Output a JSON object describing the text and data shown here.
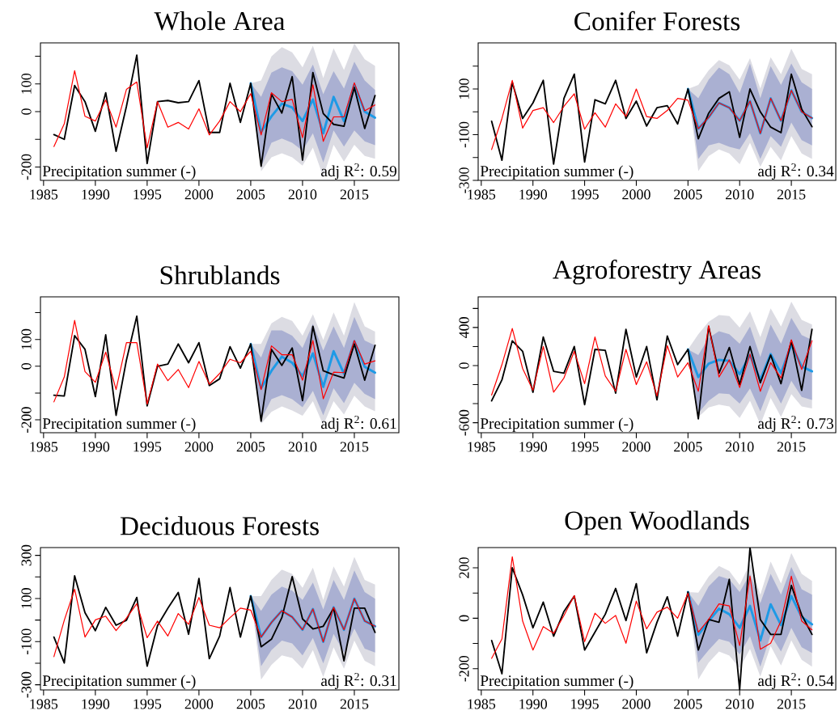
{
  "chart_data": [
    {
      "type": "line",
      "title": "Whole Area",
      "x": [
        1986,
        1987,
        1988,
        1989,
        1990,
        1991,
        1992,
        1993,
        1994,
        1995,
        1996,
        1997,
        1998,
        1999,
        2000,
        2001,
        2002,
        2003,
        2004,
        2005,
        2006,
        2007,
        2008,
        2009,
        2010,
        2011,
        2012,
        2013,
        2014,
        2015,
        2016,
        2017
      ],
      "xlim": [
        1984.7,
        2019.3
      ],
      "xticks": [
        1985,
        1990,
        1995,
        2000,
        2005,
        2010,
        2015
      ],
      "ylim": [
        -248,
        248
      ],
      "yticks": [
        -200,
        {
          "value": -100,
          "label": null
        },
        0,
        100,
        {
          "value": 200,
          "label": null
        }
      ],
      "annotations": [
        "Precipitation summer (-)",
        "adj R$^{2}$: 0.59"
      ],
      "series": [
        {
          "color": "#dcdce3",
          "x": [
            2005,
            2006,
            2007,
            2008,
            2009,
            2010,
            2011,
            2012,
            2013,
            2014,
            2015,
            2016,
            2017
          ],
          "values": [
            null,
            null,
            null,
            null,
            null,
            null,
            null,
            null,
            null,
            null,
            null,
            null,
            null
          ],
          "lower": [
            102,
            -215,
            -165,
            -150,
            -165,
            -195,
            -130,
            -235,
            -120,
            -180,
            -120,
            -160,
            -170
          ],
          "upper": [
            102,
            112,
            199,
            233,
            214,
            160,
            238,
            121,
            228,
            150,
            246,
            189,
            165
          ]
        },
        {
          "color": "#aab0d2",
          "x": [
            2005,
            2006,
            2007,
            2008,
            2009,
            2010,
            2011,
            2012,
            2013,
            2014,
            2015,
            2016,
            2017
          ],
          "values": [
            null,
            null,
            null,
            null,
            null,
            null,
            null,
            null,
            null,
            null,
            null,
            null,
            null
          ],
          "lower": [
            102,
            -199,
            -112,
            -97,
            -112,
            -141,
            -78,
            -184,
            -68,
            -126,
            -68,
            -107,
            -121
          ],
          "upper": [
            102,
            53,
            141,
            160,
            146,
            97,
            170,
            63,
            146,
            83,
            180,
            112,
            78
          ]
        },
        {
          "color": "#1e9ae6",
          "x": [
            2005,
            2006,
            2007,
            2008,
            2009,
            2010,
            2011,
            2012,
            2013,
            2014,
            2015,
            2016,
            2017
          ],
          "values": [
            102,
            -73,
            -17,
            29,
            15,
            -34,
            44,
            -78,
            53,
            -34,
            97,
            0,
            -22
          ]
        },
        {
          "color": "#000000",
          "values": [
            -83,
            -100,
            94,
            36,
            -71,
            68,
            -143,
            19,
            204,
            -187,
            36,
            40,
            32,
            36,
            112,
            -75,
            -75,
            102,
            -39,
            102,
            -197,
            63,
            -5,
            126,
            -175,
            141,
            -7,
            -46,
            -53,
            87,
            -61,
            58
          ]
        },
        {
          "color": "#ff0000",
          "values": [
            -126,
            -44,
            148,
            -17,
            -34,
            42,
            -56,
            80,
            107,
            -131,
            36,
            -56,
            -39,
            -63,
            10,
            -84,
            -34,
            36,
            0,
            65,
            -84,
            68,
            36,
            44,
            -94,
            97,
            -107,
            -19,
            -19,
            104,
            3,
            24
          ]
        }
      ]
    },
    {
      "type": "line",
      "title": "Conifer Forests",
      "x": [
        1986,
        1987,
        1988,
        1989,
        1990,
        1991,
        1992,
        1993,
        1994,
        1995,
        1996,
        1997,
        1998,
        1999,
        2000,
        2001,
        2002,
        2003,
        2004,
        2005,
        2006,
        2007,
        2008,
        2009,
        2010,
        2011,
        2012,
        2013,
        2014,
        2015,
        2016,
        2017
      ],
      "xlim": [
        1984.7,
        2019.3
      ],
      "xticks": [
        1985,
        1990,
        1995,
        2000,
        2005,
        2010,
        2015
      ],
      "ylim": [
        -300,
        302
      ],
      "yticks": [
        -300,
        {
          "value": -200,
          "label": null
        },
        -100,
        {
          "value": 0,
          "label": null
        },
        100,
        {
          "value": 200,
          "label": null
        }
      ],
      "annotations": [
        "Precipitation summer (-)",
        "adj R$^{2}$: 0.34"
      ],
      "series": [
        {
          "color": "#dcdce3",
          "x": [
            2005,
            2006,
            2007,
            2008,
            2009,
            2010,
            2011,
            2012,
            2013,
            2014,
            2015,
            2016,
            2017
          ],
          "values": [
            null,
            null,
            null,
            null,
            null,
            null,
            null,
            null,
            null,
            null,
            null,
            null,
            null
          ],
          "lower": [
            100,
            -259,
            -194,
            -165,
            -182,
            -229,
            -135,
            -241,
            -153,
            -212,
            -106,
            -182,
            -206
          ],
          "upper": [
            100,
            118,
            182,
            227,
            204,
            141,
            235,
            102,
            239,
            165,
            276,
            188,
            165
          ]
        },
        {
          "color": "#aab0d2",
          "x": [
            2005,
            2006,
            2007,
            2008,
            2009,
            2010,
            2011,
            2012,
            2013,
            2014,
            2015,
            2016,
            2017
          ],
          "values": [
            null,
            null,
            null,
            null,
            null,
            null,
            null,
            null,
            null,
            null,
            null,
            null,
            null
          ],
          "lower": [
            100,
            -206,
            -147,
            -135,
            -153,
            -165,
            -94,
            -206,
            -106,
            -153,
            -47,
            -124,
            -147
          ],
          "upper": [
            100,
            59,
            141,
            194,
            165,
            82,
            212,
            59,
            200,
            118,
            212,
            129,
            100
          ]
        },
        {
          "color": "#1e9ae6",
          "x": [
            2005,
            2006,
            2007,
            2008,
            2009,
            2010,
            2011,
            2012,
            2013,
            2014,
            2015,
            2016,
            2017
          ],
          "values": [
            100,
            -74,
            -24,
            39,
            18,
            -39,
            47,
            -94,
            59,
            -39,
            94,
            0,
            -27
          ]
        },
        {
          "color": "#000000",
          "values": [
            -41,
            -212,
            129,
            -29,
            39,
            138,
            -229,
            59,
            165,
            -220,
            53,
            35,
            138,
            -29,
            47,
            -62,
            18,
            27,
            -53,
            100,
            -118,
            -6,
            59,
            88,
            -112,
            100,
            0,
            -67,
            -91,
            165,
            12,
            -65
          ]
        },
        {
          "color": "#ff0000",
          "values": [
            -165,
            -29,
            138,
            -71,
            6,
            18,
            -47,
            24,
            79,
            -76,
            -4,
            -67,
            35,
            -20,
            100,
            -21,
            -29,
            6,
            59,
            51,
            -74,
            -24,
            39,
            18,
            -39,
            47,
            -94,
            59,
            -39,
            94,
            0,
            -27
          ]
        }
      ]
    },
    {
      "type": "line",
      "title": "Shrublands",
      "x": [
        1986,
        1987,
        1988,
        1989,
        1990,
        1991,
        1992,
        1993,
        1994,
        1995,
        1996,
        1997,
        1998,
        1999,
        2000,
        2001,
        2002,
        2003,
        2004,
        2005,
        2006,
        2007,
        2008,
        2009,
        2010,
        2011,
        2012,
        2013,
        2014,
        2015,
        2016,
        2017
      ],
      "xlim": [
        1984.7,
        2019.3
      ],
      "xticks": [
        1985,
        1990,
        1995,
        2000,
        2005,
        2010,
        2015
      ],
      "ylim": [
        -248,
        259
      ],
      "yticks": [
        -200,
        {
          "value": -100,
          "label": null
        },
        0,
        100,
        {
          "value": 200,
          "label": null
        }
      ],
      "annotations": [
        "Precipitation summer (-)",
        "adj R$^{2}$: 0.61"
      ],
      "series": [
        {
          "color": "#dcdce3",
          "x": [
            2005,
            2006,
            2007,
            2008,
            2009,
            2010,
            2011,
            2012,
            2013,
            2014,
            2015,
            2016,
            2017
          ],
          "values": [
            null,
            null,
            null,
            null,
            null,
            null,
            null,
            null,
            null,
            null,
            null,
            null,
            null
          ],
          "lower": [
            83,
            -215,
            -170,
            -150,
            -165,
            -185,
            -130,
            -220,
            -130,
            -180,
            -110,
            -150,
            -168
          ],
          "upper": [
            83,
            83,
            160,
            184,
            169,
            114,
            194,
            98,
            201,
            114,
            239,
            149,
            129
          ]
        },
        {
          "color": "#aab0d2",
          "x": [
            2005,
            2006,
            2007,
            2008,
            2009,
            2010,
            2011,
            2012,
            2013,
            2014,
            2015,
            2016,
            2017
          ],
          "values": [
            null,
            null,
            null,
            null,
            null,
            null,
            null,
            null,
            null,
            null,
            null,
            null,
            null
          ],
          "lower": [
            83,
            -198,
            -123,
            -108,
            -123,
            -153,
            -92,
            -183,
            -82,
            -138,
            -62,
            -103,
            -123
          ],
          "upper": [
            83,
            33,
            134,
            134,
            114,
            68,
            159,
            58,
            149,
            68,
            184,
            96,
            78
          ]
        },
        {
          "color": "#1e9ae6",
          "x": [
            2005,
            2006,
            2007,
            2008,
            2009,
            2010,
            2011,
            2012,
            2013,
            2014,
            2015,
            2016,
            2017
          ],
          "values": [
            83,
            -82,
            -17,
            36,
            13,
            -37,
            48,
            -77,
            56,
            -27,
            93,
            -2,
            -24
          ]
        },
        {
          "color": "#000000",
          "values": [
            -108,
            -111,
            114,
            63,
            -113,
            117,
            -183,
            23,
            187,
            -148,
            0,
            8,
            83,
            13,
            88,
            -72,
            -47,
            73,
            -7,
            83,
            -205,
            63,
            3,
            68,
            -128,
            149,
            -17,
            -32,
            -44,
            83,
            -52,
            78
          ]
        },
        {
          "color": "#ff0000",
          "values": [
            -133,
            -40,
            171,
            -20,
            -60,
            53,
            -87,
            88,
            88,
            -141,
            8,
            -54,
            -12,
            -80,
            18,
            -67,
            -27,
            26,
            13,
            56,
            -87,
            76,
            43,
            43,
            -52,
            96,
            -121,
            -22,
            -24,
            96,
            8,
            20
          ]
        }
      ]
    },
    {
      "type": "line",
      "title": "Agroforestry Areas",
      "x": [
        1986,
        1987,
        1988,
        1989,
        1990,
        1991,
        1992,
        1993,
        1994,
        1995,
        1996,
        1997,
        1998,
        1999,
        2000,
        2001,
        2002,
        2003,
        2004,
        2005,
        2006,
        2007,
        2008,
        2009,
        2010,
        2011,
        2012,
        2013,
        2014,
        2015,
        2016,
        2017
      ],
      "xlim": [
        1984.7,
        2019.3
      ],
      "xticks": [
        1985,
        1990,
        1995,
        2000,
        2005,
        2010,
        2015
      ],
      "ylim": [
        -705,
        722
      ],
      "yticks": [
        -600,
        {
          "value": -400,
          "label": null
        },
        {
          "value": -200,
          "label": null
        },
        0,
        {
          "value": 200,
          "label": null
        },
        400,
        {
          "value": 600,
          "label": null
        }
      ],
      "annotations": [
        "Precipitation summer (-)",
        "adj R$^{2}$: 0.73"
      ],
      "series": [
        {
          "color": "#dcdce3",
          "x": [
            2005,
            2006,
            2007,
            2008,
            2009,
            2010,
            2011,
            2012,
            2013,
            2014,
            2015,
            2016,
            2017
          ],
          "values": [
            null,
            null,
            null,
            null,
            null,
            null,
            null,
            null,
            null,
            null,
            null,
            null,
            null
          ],
          "lower": [
            170,
            -540,
            -440,
            -410,
            -430,
            -550,
            -370,
            -620,
            -340,
            -540,
            -300,
            -430,
            -450
          ],
          "upper": [
            170,
            330,
            460,
            530,
            520,
            400,
            570,
            300,
            600,
            410,
            670,
            480,
            430
          ]
        },
        {
          "color": "#aab0d2",
          "x": [
            2005,
            2006,
            2007,
            2008,
            2009,
            2010,
            2011,
            2012,
            2013,
            2014,
            2015,
            2016,
            2017
          ],
          "values": [
            null,
            null,
            null,
            null,
            null,
            null,
            null,
            null,
            null,
            null,
            null,
            null,
            null
          ],
          "lower": [
            170,
            -500,
            -370,
            -290,
            -300,
            -400,
            -240,
            -480,
            -200,
            -400,
            -160,
            -330,
            -360
          ],
          "upper": [
            170,
            110,
            290,
            360,
            330,
            230,
            410,
            90,
            430,
            230,
            500,
            320,
            270
          ]
        },
        {
          "color": "#1e9ae6",
          "x": [
            2005,
            2006,
            2007,
            2008,
            2009,
            2010,
            2011,
            2012,
            2013,
            2014,
            2015,
            2016,
            2017
          ],
          "values": [
            170,
            -120,
            20,
            60,
            50,
            -90,
            110,
            -150,
            120,
            -80,
            220,
            -10,
            -60
          ]
        },
        {
          "color": "#000000",
          "values": [
            -370,
            -150,
            260,
            150,
            -280,
            300,
            -60,
            -80,
            200,
            -410,
            170,
            160,
            -290,
            380,
            -120,
            200,
            -360,
            310,
            10,
            170,
            -560,
            410,
            -80,
            190,
            -200,
            200,
            -180,
            110,
            -190,
            260,
            -260,
            380
          ]
        },
        {
          "color": "#ff0000",
          "values": [
            -310,
            10,
            390,
            -30,
            -260,
            200,
            -280,
            -130,
            150,
            -190,
            300,
            -110,
            -270,
            170,
            -200,
            40,
            -320,
            210,
            -120,
            30,
            -270,
            420,
            -120,
            60,
            -230,
            120,
            -270,
            30,
            -130,
            270,
            -40,
            260
          ]
        }
      ]
    },
    {
      "type": "line",
      "title": "Deciduous Forests",
      "x": [
        1986,
        1987,
        1988,
        1989,
        1990,
        1991,
        1992,
        1993,
        1994,
        1995,
        1996,
        1997,
        1998,
        1999,
        2000,
        2001,
        2002,
        2003,
        2004,
        2005,
        2006,
        2007,
        2008,
        2009,
        2010,
        2011,
        2012,
        2013,
        2014,
        2015,
        2016,
        2017
      ],
      "xlim": [
        1984.7,
        2019.3
      ],
      "xticks": [
        1985,
        1990,
        1995,
        2000,
        2005,
        2010,
        2015
      ],
      "ylim": [
        -324,
        336
      ],
      "yticks": [
        -300,
        {
          "value": -200,
          "label": null
        },
        -100,
        {
          "value": 0,
          "label": null
        },
        100,
        {
          "value": 200,
          "label": null
        },
        300
      ],
      "annotations": [
        "Precipitation summer (-)",
        "adj R$^{2}$: 0.31"
      ],
      "series": [
        {
          "color": "#dcdce3",
          "x": [
            2005,
            2006,
            2007,
            2008,
            2009,
            2010,
            2011,
            2012,
            2013,
            2014,
            2015,
            2016,
            2017
          ],
          "values": [
            null,
            null,
            null,
            null,
            null,
            null,
            null,
            null,
            null,
            null,
            null,
            null,
            null
          ],
          "lower": [
            111,
            -276,
            -208,
            -164,
            -176,
            -226,
            -139,
            -264,
            -126,
            -226,
            -95,
            -189,
            -214
          ],
          "upper": [
            111,
            111,
            186,
            234,
            214,
            149,
            243,
            93,
            249,
            155,
            293,
            186,
            164
          ]
        },
        {
          "color": "#aab0d2",
          "x": [
            2005,
            2006,
            2007,
            2008,
            2009,
            2010,
            2011,
            2012,
            2013,
            2014,
            2015,
            2016,
            2017
          ],
          "values": [
            null,
            null,
            null,
            null,
            null,
            null,
            null,
            null,
            null,
            null,
            null,
            null,
            null
          ],
          "lower": [
            111,
            -214,
            -139,
            -95,
            -108,
            -164,
            -83,
            -201,
            -64,
            -151,
            -39,
            -133,
            -151
          ],
          "upper": [
            111,
            43,
            118,
            155,
            136,
            93,
            174,
            49,
            186,
            93,
            230,
            130,
            99
          ]
        },
        {
          "color": "#1e9ae6",
          "x": [
            2005,
            2006,
            2007,
            2008,
            2009,
            2010,
            2011,
            2012,
            2013,
            2014,
            2015,
            2016,
            2017
          ],
          "values": [
            111,
            -79,
            -11,
            43,
            14,
            -45,
            51,
            -101,
            59,
            -45,
            99,
            -4,
            -29
          ]
        },
        {
          "color": "#000000",
          "values": [
            -79,
            -199,
            205,
            34,
            -49,
            59,
            -24,
            -1,
            105,
            -214,
            -26,
            55,
            128,
            -66,
            193,
            -179,
            -74,
            151,
            -79,
            111,
            -124,
            -89,
            11,
            201,
            5,
            -41,
            -29,
            55,
            -189,
            55,
            55,
            -57
          ]
        },
        {
          "color": "#ff0000",
          "values": [
            -170,
            -1,
            143,
            -79,
            1,
            18,
            -49,
            9,
            76,
            -82,
            -5,
            -74,
            30,
            -20,
            105,
            -24,
            -36,
            11,
            55,
            46,
            -79,
            -11,
            43,
            14,
            -45,
            51,
            -101,
            59,
            -45,
            99,
            -4,
            -29
          ]
        }
      ]
    },
    {
      "type": "line",
      "title": "Open Woodlands",
      "x": [
        1986,
        1987,
        1988,
        1989,
        1990,
        1991,
        1992,
        1993,
        1994,
        1995,
        1996,
        1997,
        1998,
        1999,
        2000,
        2001,
        2002,
        2003,
        2004,
        2005,
        2006,
        2007,
        2008,
        2009,
        2010,
        2011,
        2012,
        2013,
        2014,
        2015,
        2016,
        2017
      ],
      "xlim": [
        1984.7,
        2019.3
      ],
      "xticks": [
        1985,
        1990,
        1995,
        2000,
        2005,
        2010,
        2015
      ],
      "ylim": [
        -284,
        280
      ],
      "yticks": [
        -200,
        {
          "value": -100,
          "label": null
        },
        0,
        {
          "value": 100,
          "label": null
        },
        200
      ],
      "annotations": [
        "Precipitation summer (-)",
        "adj R$^{2}$: 0.54"
      ],
      "series": [
        {
          "color": "#dcdce3",
          "x": [
            2005,
            2006,
            2007,
            2008,
            2009,
            2010,
            2011,
            2012,
            2013,
            2014,
            2015,
            2016,
            2017
          ],
          "values": [
            null,
            null,
            null,
            null,
            null,
            null,
            null,
            null,
            null,
            null,
            null,
            null,
            null
          ],
          "lower": [
            104,
            -242,
            -176,
            -132,
            -148,
            -198,
            -121,
            -231,
            -110,
            -187,
            -88,
            -165,
            -192
          ],
          "upper": [
            104,
            101,
            165,
            207,
            187,
            132,
            218,
            93,
            225,
            137,
            258,
            176,
            148
          ]
        },
        {
          "color": "#aab0d2",
          "x": [
            2005,
            2006,
            2007,
            2008,
            2009,
            2010,
            2011,
            2012,
            2013,
            2014,
            2015,
            2016,
            2017
          ],
          "values": [
            null,
            null,
            null,
            null,
            null,
            null,
            null,
            null,
            null,
            null,
            null,
            null,
            null
          ],
          "lower": [
            104,
            -176,
            -126,
            -82,
            -93,
            -143,
            -71,
            -192,
            -66,
            -132,
            -38,
            -115,
            -137
          ],
          "upper": [
            104,
            49,
            126,
            167,
            154,
            104,
            176,
            60,
            176,
            93,
            203,
            115,
            93
          ]
        },
        {
          "color": "#1e9ae6",
          "x": [
            2005,
            2006,
            2007,
            2008,
            2009,
            2010,
            2011,
            2012,
            2013,
            2014,
            2015,
            2016,
            2017
          ],
          "values": [
            104,
            -66,
            -11,
            38,
            16,
            -38,
            49,
            -88,
            55,
            -27,
            88,
            5,
            -24
          ]
        },
        {
          "color": "#000000",
          "values": [
            -88,
            -220,
            200,
            93,
            -38,
            64,
            -71,
            27,
            88,
            -126,
            -55,
            16,
            118,
            -9,
            137,
            -137,
            -16,
            85,
            -71,
            104,
            -126,
            -5,
            -16,
            154,
            -284,
            280,
            -5,
            -64,
            -64,
            130,
            13,
            -64
          ]
        },
        {
          "color": "#ff0000",
          "values": [
            -159,
            -82,
            244,
            -11,
            -126,
            -33,
            -60,
            11,
            90,
            -93,
            20,
            -20,
            11,
            -99,
            68,
            -42,
            24,
            44,
            0,
            99,
            -55,
            -5,
            57,
            49,
            -108,
            167,
            -123,
            -99,
            -11,
            167,
            -11,
            -46
          ]
        }
      ]
    }
  ]
}
